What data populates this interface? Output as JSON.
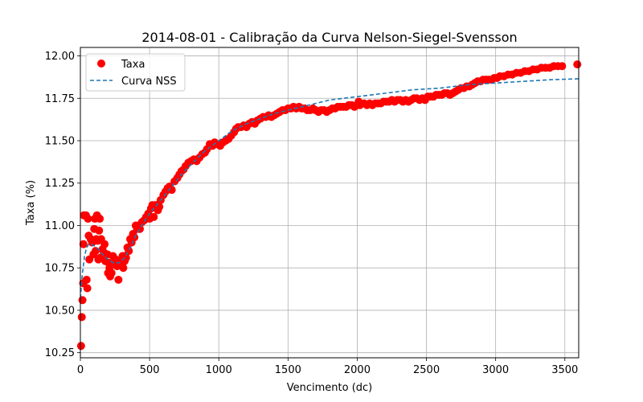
{
  "chart_data": {
    "type": "scatter",
    "title": "2014-08-01 - Calibração da Curva Nelson-Siegel-Svensson",
    "xlabel": "Vencimento (dc)",
    "ylabel": "Taxa (%)",
    "xlim": [
      0,
      3600
    ],
    "ylim": [
      10.22,
      12.05
    ],
    "xticks": [
      0,
      500,
      1000,
      1500,
      2000,
      2500,
      3000,
      3500
    ],
    "yticks": [
      10.25,
      10.5,
      10.75,
      11.0,
      11.25,
      11.5,
      11.75,
      12.0
    ],
    "xtick_labels": [
      "0",
      "500",
      "1000",
      "1500",
      "2000",
      "2500",
      "3000",
      "3500"
    ],
    "ytick_labels": [
      "10.25",
      "10.50",
      "10.75",
      "11.00",
      "11.25",
      "11.50",
      "11.75",
      "12.00"
    ],
    "grid": true,
    "legend_position": "top-left",
    "series": [
      {
        "name": "Taxa",
        "kind": "scatter",
        "color": "#ff0000",
        "points": [
          [
            5,
            10.29
          ],
          [
            10,
            10.46
          ],
          [
            15,
            10.56
          ],
          [
            20,
            10.66
          ],
          [
            22,
            10.89
          ],
          [
            25,
            11.06
          ],
          [
            30,
            11.06
          ],
          [
            40,
            11.06
          ],
          [
            45,
            10.68
          ],
          [
            50,
            10.63
          ],
          [
            55,
            11.04
          ],
          [
            60,
            10.94
          ],
          [
            65,
            10.8
          ],
          [
            75,
            10.92
          ],
          [
            85,
            10.9
          ],
          [
            95,
            10.83
          ],
          [
            100,
            10.98
          ],
          [
            105,
            11.04
          ],
          [
            110,
            10.85
          ],
          [
            115,
            10.92
          ],
          [
            120,
            11.06
          ],
          [
            125,
            10.91
          ],
          [
            130,
            10.8
          ],
          [
            135,
            10.97
          ],
          [
            140,
            11.04
          ],
          [
            145,
            10.81
          ],
          [
            150,
            10.92
          ],
          [
            160,
            10.86
          ],
          [
            170,
            10.84
          ],
          [
            175,
            10.89
          ],
          [
            180,
            10.79
          ],
          [
            195,
            10.83
          ],
          [
            200,
            10.72
          ],
          [
            205,
            10.78
          ],
          [
            210,
            10.75
          ],
          [
            215,
            10.7
          ],
          [
            225,
            10.72
          ],
          [
            235,
            10.82
          ],
          [
            245,
            10.78
          ],
          [
            255,
            10.8
          ],
          [
            265,
            10.76
          ],
          [
            275,
            10.68
          ],
          [
            280,
            10.78
          ],
          [
            290,
            10.77
          ],
          [
            300,
            10.8
          ],
          [
            305,
            10.82
          ],
          [
            310,
            10.75
          ],
          [
            315,
            10.82
          ],
          [
            320,
            10.79
          ],
          [
            330,
            10.81
          ],
          [
            340,
            10.87
          ],
          [
            350,
            10.85
          ],
          [
            360,
            10.92
          ],
          [
            370,
            10.9
          ],
          [
            380,
            10.95
          ],
          [
            390,
            10.93
          ],
          [
            400,
            11.0
          ],
          [
            410,
            10.98
          ],
          [
            420,
            11.0
          ],
          [
            430,
            10.98
          ],
          [
            445,
            11.02
          ],
          [
            460,
            11.03
          ],
          [
            475,
            11.05
          ],
          [
            490,
            11.07
          ],
          [
            500,
            11.04
          ],
          [
            510,
            11.1
          ],
          [
            520,
            11.12
          ],
          [
            530,
            11.05
          ],
          [
            540,
            11.12
          ],
          [
            550,
            11.12
          ],
          [
            560,
            11.09
          ],
          [
            570,
            11.11
          ],
          [
            580,
            11.15
          ],
          [
            600,
            11.18
          ],
          [
            615,
            11.2
          ],
          [
            630,
            11.22
          ],
          [
            645,
            11.23
          ],
          [
            660,
            11.21
          ],
          [
            680,
            11.26
          ],
          [
            700,
            11.28
          ],
          [
            715,
            11.3
          ],
          [
            730,
            11.32
          ],
          [
            745,
            11.33
          ],
          [
            760,
            11.35
          ],
          [
            780,
            11.37
          ],
          [
            800,
            11.38
          ],
          [
            820,
            11.39
          ],
          [
            840,
            11.38
          ],
          [
            860,
            11.4
          ],
          [
            880,
            11.42
          ],
          [
            900,
            11.43
          ],
          [
            915,
            11.45
          ],
          [
            935,
            11.48
          ],
          [
            955,
            11.47
          ],
          [
            970,
            11.49
          ],
          [
            990,
            11.48
          ],
          [
            1010,
            11.47
          ],
          [
            1030,
            11.49
          ],
          [
            1050,
            11.5
          ],
          [
            1070,
            11.51
          ],
          [
            1090,
            11.53
          ],
          [
            1110,
            11.55
          ],
          [
            1125,
            11.57
          ],
          [
            1140,
            11.58
          ],
          [
            1160,
            11.58
          ],
          [
            1180,
            11.59
          ],
          [
            1200,
            11.58
          ],
          [
            1220,
            11.6
          ],
          [
            1240,
            11.61
          ],
          [
            1260,
            11.6
          ],
          [
            1280,
            11.62
          ],
          [
            1300,
            11.63
          ],
          [
            1320,
            11.64
          ],
          [
            1340,
            11.64
          ],
          [
            1360,
            11.65
          ],
          [
            1380,
            11.64
          ],
          [
            1400,
            11.65
          ],
          [
            1420,
            11.66
          ],
          [
            1440,
            11.67
          ],
          [
            1460,
            11.68
          ],
          [
            1480,
            11.68
          ],
          [
            1500,
            11.69
          ],
          [
            1520,
            11.69
          ],
          [
            1540,
            11.7
          ],
          [
            1560,
            11.69
          ],
          [
            1580,
            11.7
          ],
          [
            1600,
            11.69
          ],
          [
            1620,
            11.69
          ],
          [
            1640,
            11.68
          ],
          [
            1660,
            11.68
          ],
          [
            1680,
            11.69
          ],
          [
            1700,
            11.68
          ],
          [
            1720,
            11.67
          ],
          [
            1740,
            11.68
          ],
          [
            1760,
            11.68
          ],
          [
            1780,
            11.67
          ],
          [
            1800,
            11.68
          ],
          [
            1820,
            11.69
          ],
          [
            1840,
            11.69
          ],
          [
            1860,
            11.7
          ],
          [
            1880,
            11.7
          ],
          [
            1900,
            11.7
          ],
          [
            1920,
            11.7
          ],
          [
            1940,
            11.71
          ],
          [
            1960,
            11.71
          ],
          [
            1980,
            11.7
          ],
          [
            2000,
            11.71
          ],
          [
            2010,
            11.73
          ],
          [
            2020,
            11.71
          ],
          [
            2030,
            11.72
          ],
          [
            2050,
            11.72
          ],
          [
            2070,
            11.71
          ],
          [
            2090,
            11.72
          ],
          [
            2110,
            11.71
          ],
          [
            2130,
            11.72
          ],
          [
            2150,
            11.72
          ],
          [
            2170,
            11.72
          ],
          [
            2190,
            11.73
          ],
          [
            2210,
            11.73
          ],
          [
            2230,
            11.73
          ],
          [
            2250,
            11.74
          ],
          [
            2270,
            11.73
          ],
          [
            2290,
            11.74
          ],
          [
            2310,
            11.74
          ],
          [
            2330,
            11.73
          ],
          [
            2350,
            11.74
          ],
          [
            2370,
            11.73
          ],
          [
            2390,
            11.74
          ],
          [
            2410,
            11.75
          ],
          [
            2430,
            11.75
          ],
          [
            2450,
            11.74
          ],
          [
            2470,
            11.75
          ],
          [
            2490,
            11.74
          ],
          [
            2510,
            11.76
          ],
          [
            2530,
            11.76
          ],
          [
            2550,
            11.76
          ],
          [
            2570,
            11.77
          ],
          [
            2590,
            11.77
          ],
          [
            2610,
            11.77
          ],
          [
            2630,
            11.78
          ],
          [
            2650,
            11.78
          ],
          [
            2670,
            11.77
          ],
          [
            2690,
            11.78
          ],
          [
            2710,
            11.79
          ],
          [
            2730,
            11.8
          ],
          [
            2750,
            11.81
          ],
          [
            2770,
            11.81
          ],
          [
            2790,
            11.82
          ],
          [
            2810,
            11.82
          ],
          [
            2830,
            11.83
          ],
          [
            2850,
            11.84
          ],
          [
            2870,
            11.85
          ],
          [
            2890,
            11.85
          ],
          [
            2910,
            11.86
          ],
          [
            2930,
            11.86
          ],
          [
            2950,
            11.86
          ],
          [
            2970,
            11.86
          ],
          [
            2990,
            11.87
          ],
          [
            3010,
            11.87
          ],
          [
            3030,
            11.88
          ],
          [
            3060,
            11.88
          ],
          [
            3090,
            11.89
          ],
          [
            3120,
            11.89
          ],
          [
            3150,
            11.9
          ],
          [
            3180,
            11.9
          ],
          [
            3210,
            11.91
          ],
          [
            3240,
            11.91
          ],
          [
            3270,
            11.92
          ],
          [
            3300,
            11.92
          ],
          [
            3330,
            11.93
          ],
          [
            3360,
            11.93
          ],
          [
            3390,
            11.93
          ],
          [
            3420,
            11.94
          ],
          [
            3450,
            11.94
          ],
          [
            3480,
            11.94
          ],
          [
            3590,
            11.95
          ]
        ]
      },
      {
        "name": "Curva NSS",
        "kind": "line",
        "style": "dashed",
        "color": "#1f77b4",
        "points": [
          [
            0,
            10.57
          ],
          [
            15,
            10.72
          ],
          [
            30,
            10.82
          ],
          [
            45,
            10.87
          ],
          [
            60,
            10.89
          ],
          [
            80,
            10.89
          ],
          [
            100,
            10.88
          ],
          [
            130,
            10.86
          ],
          [
            160,
            10.83
          ],
          [
            200,
            10.8
          ],
          [
            240,
            10.78
          ],
          [
            280,
            10.78
          ],
          [
            320,
            10.81
          ],
          [
            360,
            10.87
          ],
          [
            400,
            10.94
          ],
          [
            450,
            11.01
          ],
          [
            500,
            11.07
          ],
          [
            550,
            11.12
          ],
          [
            600,
            11.17
          ],
          [
            650,
            11.22
          ],
          [
            700,
            11.27
          ],
          [
            750,
            11.32
          ],
          [
            800,
            11.36
          ],
          [
            850,
            11.4
          ],
          [
            900,
            11.44
          ],
          [
            950,
            11.47
          ],
          [
            1000,
            11.5
          ],
          [
            1100,
            11.56
          ],
          [
            1200,
            11.6
          ],
          [
            1300,
            11.63
          ],
          [
            1400,
            11.66
          ],
          [
            1500,
            11.68
          ],
          [
            1600,
            11.7
          ],
          [
            1700,
            11.72
          ],
          [
            1800,
            11.74
          ],
          [
            1900,
            11.75
          ],
          [
            2000,
            11.76
          ],
          [
            2200,
            11.78
          ],
          [
            2400,
            11.8
          ],
          [
            2600,
            11.81
          ],
          [
            2800,
            11.83
          ],
          [
            3000,
            11.84
          ],
          [
            3200,
            11.85
          ],
          [
            3400,
            11.86
          ],
          [
            3600,
            11.865
          ]
        ]
      }
    ]
  }
}
